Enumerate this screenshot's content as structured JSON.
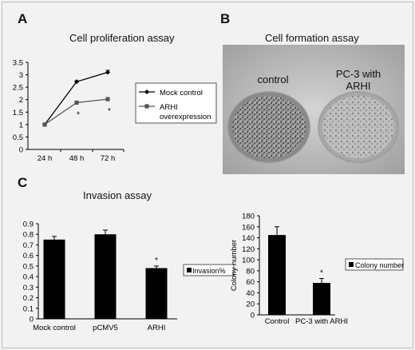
{
  "panels": {
    "a": {
      "label": "A",
      "title": "Cell proliferation assay"
    },
    "b": {
      "label": "B",
      "title": "Cell formation assay",
      "photo_labels": {
        "left": "control",
        "right_line1": "PC-3 with",
        "right_line2": "ARHI"
      }
    },
    "c": {
      "label": "C",
      "title": "Invasion assay"
    }
  },
  "chart_data": [
    {
      "type": "line",
      "title": "Cell proliferation assay",
      "x": [
        "24 h",
        "48 h",
        "72 h"
      ],
      "ylim": [
        0,
        3.5
      ],
      "yticks": [
        "0",
        "0.5",
        "1",
        "1.5",
        "2",
        "2.5",
        "3",
        "3.5"
      ],
      "grid": false,
      "legend_position": "right",
      "series": [
        {
          "name": "Mock control",
          "values": [
            1.0,
            2.72,
            3.1
          ],
          "errors": [
            0.03,
            0.04,
            0.08
          ],
          "color": "#000000",
          "marker": "diamond"
        },
        {
          "name_line1": "ARHI",
          "name_line2": "overexpression",
          "values": [
            1.0,
            1.88,
            2.02
          ],
          "errors": [
            0.03,
            0.05,
            0.05
          ],
          "color": "#555555",
          "marker": "square"
        }
      ],
      "annotations": [
        "*",
        "*"
      ]
    },
    {
      "type": "bar",
      "title": "Invasion assay",
      "categories": [
        "Mock control",
        "pCMV5",
        "ARHI"
      ],
      "values": [
        0.75,
        0.8,
        0.48
      ],
      "errors": [
        0.03,
        0.04,
        0.02
      ],
      "ylim": [
        0,
        0.9
      ],
      "yticks": [
        "0",
        "0.1",
        "0.2",
        "0.3",
        "0.4",
        "0.5",
        "0.6",
        "0.7",
        "0.8",
        "0.9"
      ],
      "legend": "Invasion%",
      "annotations": [
        "*"
      ],
      "color": "#000000"
    },
    {
      "type": "bar",
      "categories": [
        "Control",
        "PC-3 with ARHI"
      ],
      "values": [
        145,
        58
      ],
      "errors": [
        15,
        8
      ],
      "ylim": [
        0,
        180
      ],
      "yticks": [
        "0",
        "20",
        "40",
        "60",
        "80",
        "100",
        "120",
        "140",
        "160",
        "180"
      ],
      "ylabel": "Colony number",
      "legend": "Colony number",
      "annotations": [
        "*"
      ],
      "color": "#000000"
    }
  ]
}
